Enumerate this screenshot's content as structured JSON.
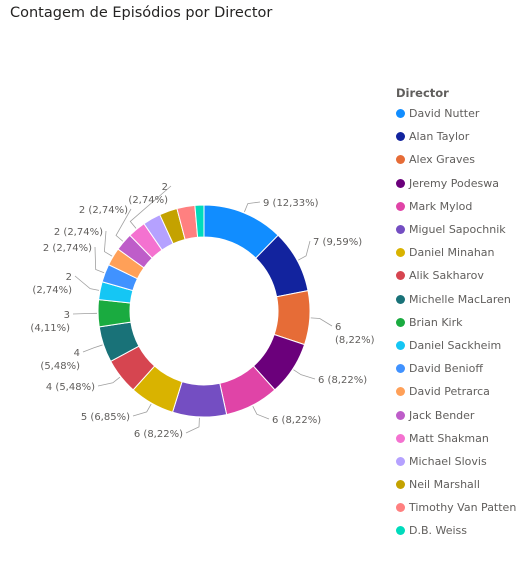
{
  "title": "Contagem de Episódios por Director",
  "chart_data": {
    "type": "pie",
    "donut": true,
    "legend_title": "Director",
    "legend_position": "right",
    "series": [
      {
        "name": "David Nutter",
        "value": 9,
        "label": "9 (12,33%)",
        "color": "#118DFF"
      },
      {
        "name": "Alan Taylor",
        "value": 7,
        "label": "7 (9,59%)",
        "color": "#12239E"
      },
      {
        "name": "Alex Graves",
        "value": 6,
        "label": "6 (8,22%)",
        "color": "#E66C37"
      },
      {
        "name": "Jeremy Podeswa",
        "value": 6,
        "label": "6 (8,22%)",
        "color": "#6B007B"
      },
      {
        "name": "Mark Mylod",
        "value": 6,
        "label": "6 (8,22%)",
        "color": "#E044A7"
      },
      {
        "name": "Miguel Sapochnik",
        "value": 6,
        "label": "6 (8,22%)",
        "color": "#744EC2"
      },
      {
        "name": "Daniel Minahan",
        "value": 5,
        "label": "5 (6,85%)",
        "color": "#D9B300"
      },
      {
        "name": "Alik Sakharov",
        "value": 4,
        "label": "4 (5,48%)",
        "color": "#D64550"
      },
      {
        "name": "Michelle MacLaren",
        "value": 4,
        "label": "4 (5,48%)",
        "color": "#197278"
      },
      {
        "name": "Brian Kirk",
        "value": 3,
        "label": "3 (4,11%)",
        "color": "#1AAB40"
      },
      {
        "name": "Daniel Sackheim",
        "value": 2,
        "label": "2 (2,74%)",
        "color": "#15C6F4"
      },
      {
        "name": "David Benioff",
        "value": 2,
        "label": "2 (2,74%)",
        "color": "#4092FF"
      },
      {
        "name": "David Petrarca",
        "value": 2,
        "label": "2 (2,74%)",
        "color": "#FFA058"
      },
      {
        "name": "Jack Bender",
        "value": 2,
        "label": "2 (2,74%)",
        "color": "#BE5DC9"
      },
      {
        "name": "Matt Shakman",
        "value": 2,
        "label": "2 (2,74%)",
        "color": "#F472D0"
      },
      {
        "name": "Michael Slovis",
        "value": 2,
        "label": "2 (2,74%)",
        "color": "#B5A1FF"
      },
      {
        "name": "Neil Marshall",
        "value": 2,
        "label": "2 (2,74%)",
        "color": "#C4A200"
      },
      {
        "name": "Timothy Van Patten",
        "value": 2,
        "label": "2 (2,74%)",
        "color": "#FF8080"
      },
      {
        "name": "D.B. Weiss",
        "value": 1,
        "label": "",
        "color": "#00DBBC"
      }
    ]
  }
}
